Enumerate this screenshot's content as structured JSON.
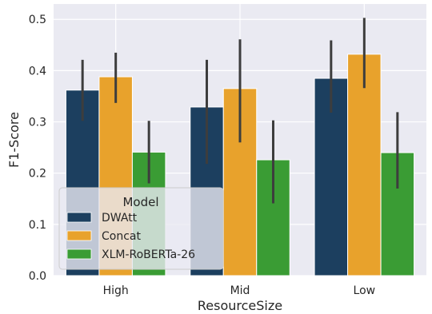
{
  "chart_data": {
    "type": "bar",
    "title": "",
    "xlabel": "ResourceSize",
    "ylabel": "F1-Score",
    "categories": [
      "High",
      "Mid",
      "Low"
    ],
    "ylim": [
      0,
      0.53
    ],
    "yticks": [
      "0.0",
      "0.1",
      "0.2",
      "0.3",
      "0.4",
      "0.5"
    ],
    "grid": true,
    "error_bars": true,
    "series": [
      {
        "name": "DWAtt",
        "color": "#1c3f5f",
        "values": [
          0.362,
          0.329,
          0.385
        ],
        "ci_low": [
          0.302,
          0.218,
          0.318
        ],
        "ci_high": [
          0.421,
          0.421,
          0.459
        ]
      },
      {
        "name": "Concat",
        "color": "#e8a22c",
        "values": [
          0.388,
          0.365,
          0.432
        ],
        "ci_low": [
          0.337,
          0.26,
          0.366
        ],
        "ci_high": [
          0.435,
          0.461,
          0.503
        ]
      },
      {
        "name": "XLM-RoBERTa-26",
        "color": "#3a9c34",
        "values": [
          0.241,
          0.226,
          0.24
        ],
        "ci_low": [
          0.18,
          0.141,
          0.17
        ],
        "ci_high": [
          0.302,
          0.303,
          0.319
        ]
      }
    ],
    "legend": {
      "title": "Model",
      "position": "lower-left"
    }
  }
}
